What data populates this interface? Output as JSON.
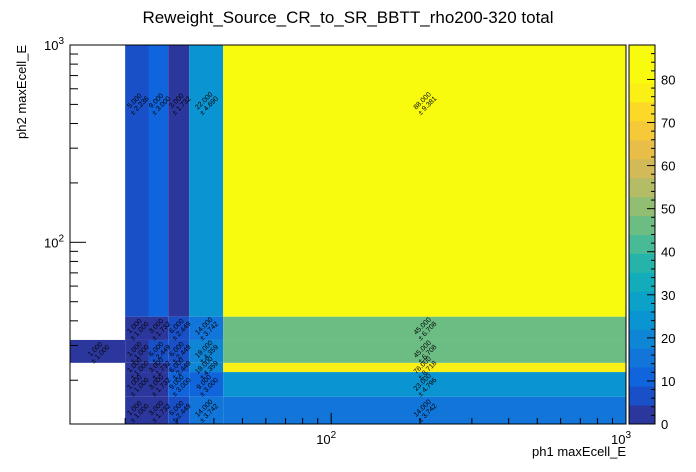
{
  "chart_data": {
    "type": "heatmap",
    "title": "Reweight_Source_CR_to_SR_BBTT_rho200-320 total",
    "xlabel": "ph1 maxEcell_E",
    "ylabel": "ph2 maxEcell_E",
    "x_scale": "log",
    "y_scale": "log",
    "xlim": [
      13,
      1000
    ],
    "ylim": [
      12,
      1000
    ],
    "zlim": [
      0,
      88
    ],
    "x_bin_edges": [
      13,
      20,
      24,
      28,
      33,
      43,
      1000
    ],
    "y_bin_edges": [
      12,
      16.5,
      22,
      24.5,
      32,
      42,
      1000
    ],
    "x_ticks": [
      {
        "value": 100,
        "base": "10",
        "exp": "2"
      },
      {
        "value": 1000,
        "base": "10",
        "exp": "3"
      }
    ],
    "y_ticks": [
      {
        "value": 100,
        "base": "10",
        "exp": "2"
      },
      {
        "value": 1000,
        "base": "10",
        "exp": "3"
      }
    ],
    "z_ticks": [
      0,
      10,
      20,
      30,
      40,
      50,
      60,
      70,
      80
    ],
    "cells": [
      {
        "xi": 0,
        "yi": 3,
        "value": 1.0,
        "err": 1.0,
        "text": "1.000",
        "etext": "± 1.000"
      },
      {
        "xi": 1,
        "yi": 0,
        "value": 1.0,
        "err": 1.0,
        "text": "1.000",
        "etext": "± 1.000"
      },
      {
        "xi": 2,
        "yi": 0,
        "value": 3.0,
        "err": 1.732,
        "text": "3.000",
        "etext": "± 1.732"
      },
      {
        "xi": 3,
        "yi": 0,
        "value": 6.0,
        "err": 2.449,
        "text": "6.000",
        "etext": "± 2.449"
      },
      {
        "xi": 4,
        "yi": 0,
        "value": 14.0,
        "err": 3.742,
        "text": "14.000",
        "etext": "± 3.742"
      },
      {
        "xi": 5,
        "yi": 0,
        "value": 14.0,
        "err": 3.742,
        "text": "14.000",
        "etext": "± 3.742"
      },
      {
        "xi": 1,
        "yi": 1,
        "value": 1.0,
        "err": 1.0,
        "text": "1.000",
        "etext": "± 1.000"
      },
      {
        "xi": 2,
        "yi": 1,
        "value": 3.0,
        "err": 1.732,
        "text": "3.000",
        "etext": "± 1.732"
      },
      {
        "xi": 3,
        "yi": 1,
        "value": 9.0,
        "err": 3.0,
        "text": "9.000",
        "etext": "± 3.000"
      },
      {
        "xi": 4,
        "yi": 1,
        "value": 9.0,
        "err": 3.0,
        "text": "9.000",
        "etext": "± 3.000"
      },
      {
        "xi": 5,
        "yi": 1,
        "value": 23.0,
        "err": 4.796,
        "text": "23.000",
        "etext": "± 4.796"
      },
      {
        "xi": 1,
        "yi": 2,
        "value": 1.0,
        "err": 1.0,
        "text": "1.000",
        "etext": "± 1.000"
      },
      {
        "xi": 2,
        "yi": 2,
        "value": 3.0,
        "err": 1.732,
        "text": "3.000",
        "etext": "± 1.732"
      },
      {
        "xi": 3,
        "yi": 2,
        "value": 6.0,
        "err": 2.449,
        "text": "6.000",
        "etext": "± 2.449"
      },
      {
        "xi": 4,
        "yi": 2,
        "value": 19.0,
        "err": 4.359,
        "text": "19.000",
        "etext": "± 4.359"
      },
      {
        "xi": 5,
        "yi": 2,
        "value": 76.0,
        "err": 8.718,
        "text": "76.000",
        "etext": "± 8.718"
      },
      {
        "xi": 1,
        "yi": 3,
        "value": 1.0,
        "err": 1.0,
        "text": "1.000",
        "etext": "± 1.000"
      },
      {
        "xi": 2,
        "yi": 3,
        "value": 6.0,
        "err": 2.449,
        "text": "6.000",
        "etext": "± 2.449"
      },
      {
        "xi": 3,
        "yi": 3,
        "value": 6.0,
        "err": 2.449,
        "text": "6.000",
        "etext": "± 2.449"
      },
      {
        "xi": 4,
        "yi": 3,
        "value": 19.0,
        "err": 4.359,
        "text": "19.000",
        "etext": "± 4.359"
      },
      {
        "xi": 5,
        "yi": 3,
        "value": 45.0,
        "err": 6.708,
        "text": "45.000",
        "etext": "± 6.708"
      },
      {
        "xi": 1,
        "yi": 4,
        "value": 1.0,
        "err": 1.0,
        "text": "1.000",
        "etext": "± 1.000"
      },
      {
        "xi": 2,
        "yi": 4,
        "value": 3.0,
        "err": 1.732,
        "text": "3.000",
        "etext": "± 1.732"
      },
      {
        "xi": 3,
        "yi": 4,
        "value": 6.0,
        "err": 2.449,
        "text": "6.000",
        "etext": "± 2.449"
      },
      {
        "xi": 4,
        "yi": 4,
        "value": 14.0,
        "err": 3.742,
        "text": "14.000",
        "etext": "± 3.742"
      },
      {
        "xi": 5,
        "yi": 4,
        "value": 45.0,
        "err": 6.708,
        "text": "45.000",
        "etext": "± 6.708"
      },
      {
        "xi": 1,
        "yi": 5,
        "value": 5.0,
        "err": 2.236,
        "text": "5.000",
        "etext": "± 2.236"
      },
      {
        "xi": 2,
        "yi": 5,
        "value": 9.0,
        "err": 3.0,
        "text": "9.000",
        "etext": "± 3.000"
      },
      {
        "xi": 3,
        "yi": 5,
        "value": 3.0,
        "err": 1.732,
        "text": "3.000",
        "etext": "± 1.732"
      },
      {
        "xi": 4,
        "yi": 5,
        "value": 22.0,
        "err": 4.69,
        "text": "22.000",
        "etext": "± 4.690"
      },
      {
        "xi": 5,
        "yi": 5,
        "value": 88.0,
        "err": 9.381,
        "text": "88.000",
        "etext": "± 9.381"
      }
    ]
  }
}
